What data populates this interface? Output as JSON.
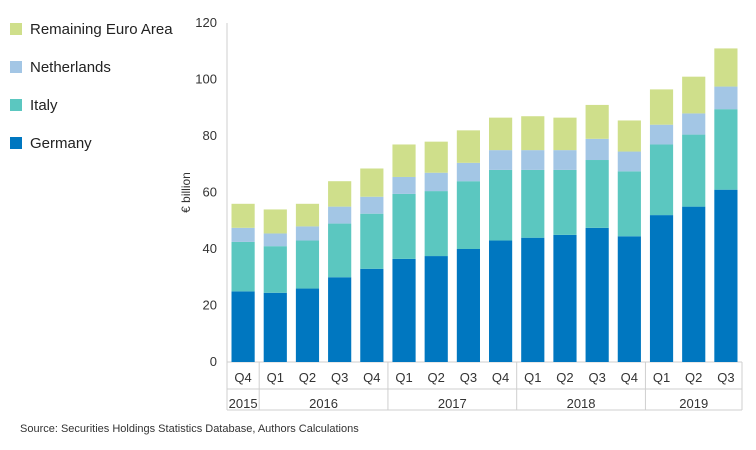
{
  "chart_data": {
    "type": "bar",
    "stacked": true,
    "ylabel": "€ billion",
    "ylim": [
      0,
      120
    ],
    "yticks": [
      0,
      20,
      40,
      60,
      80,
      100,
      120
    ],
    "categories": [
      "Q4",
      "Q1",
      "Q2",
      "Q3",
      "Q4",
      "Q1",
      "Q2",
      "Q3",
      "Q4",
      "Q1",
      "Q2",
      "Q3",
      "Q4",
      "Q1",
      "Q2",
      "Q3"
    ],
    "years": [
      {
        "label": "2015",
        "start": 0,
        "end": 0
      },
      {
        "label": "2016",
        "start": 1,
        "end": 4
      },
      {
        "label": "2017",
        "start": 5,
        "end": 8
      },
      {
        "label": "2018",
        "start": 9,
        "end": 12
      },
      {
        "label": "2019",
        "start": 13,
        "end": 15
      }
    ],
    "series": [
      {
        "name": "Germany",
        "color": "#0077C0",
        "values": [
          25,
          24.5,
          26,
          30,
          33,
          36.5,
          37.5,
          40,
          43,
          44,
          45,
          47.5,
          44.5,
          52,
          55,
          61
        ]
      },
      {
        "name": "Italy",
        "color": "#5BC7C0",
        "values": [
          17.5,
          16.5,
          17,
          19,
          19.5,
          23,
          23,
          24,
          25,
          24,
          23,
          24,
          23,
          25,
          25.5,
          28.5
        ]
      },
      {
        "name": "Netherlands",
        "color": "#A3C6E5",
        "values": [
          5,
          4.5,
          5,
          6,
          6,
          6,
          6.5,
          6.5,
          7,
          7,
          7,
          7.5,
          7,
          7,
          7.5,
          8
        ]
      },
      {
        "name": "Remaining Euro Area",
        "color": "#CFDF8B",
        "values": [
          8.5,
          8.5,
          8,
          9,
          10,
          11.5,
          11,
          11.5,
          11.5,
          12,
          11.5,
          12,
          11,
          12.5,
          13,
          13.5
        ]
      }
    ]
  },
  "legend_order": [
    "Remaining Euro Area",
    "Netherlands",
    "Italy",
    "Germany"
  ],
  "source": "Source: Securities Holdings Statistics Database, Authors Calculations"
}
